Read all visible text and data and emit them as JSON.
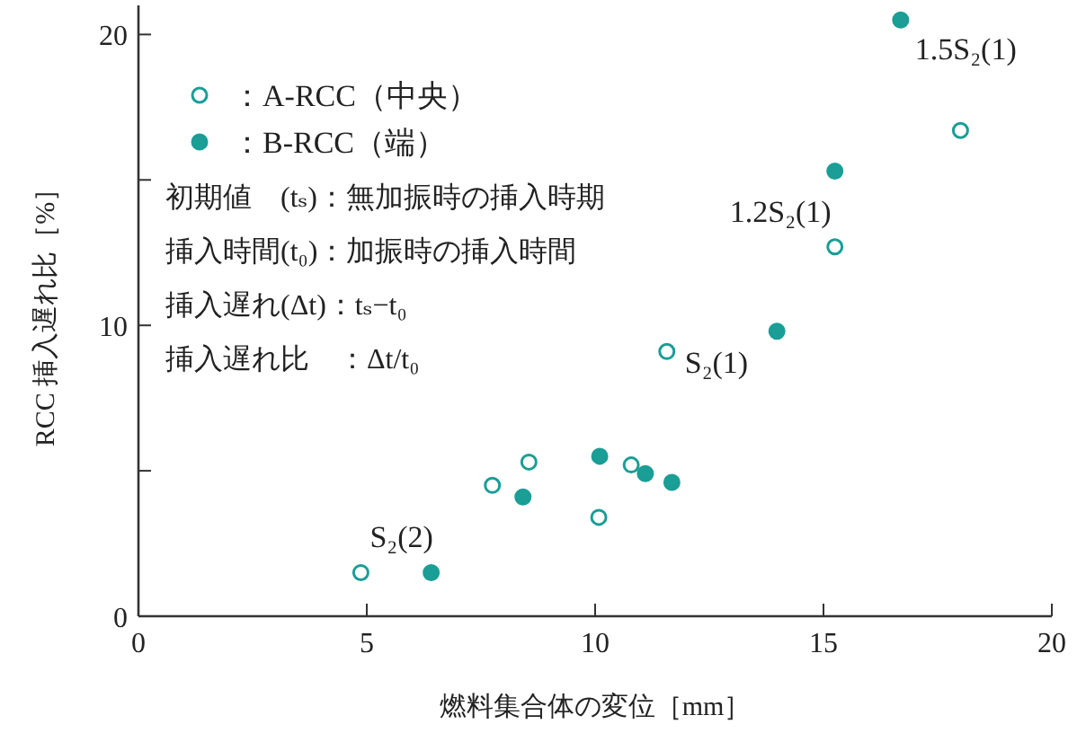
{
  "chart_data": {
    "type": "scatter",
    "xlabel": "燃料集合体の変位［mm］",
    "ylabel": "RCC 挿入遅れ比［%］",
    "xlim": [
      0,
      20
    ],
    "xticks": [
      0,
      5,
      10,
      15,
      20
    ],
    "ylim": [
      0,
      21
    ],
    "yticks": [
      0,
      {
        "value": 5,
        "label": null
      },
      10,
      {
        "value": 15,
        "label": null
      },
      20
    ],
    "grid": false,
    "legend": "top left",
    "marker": "circle",
    "series": [
      {
        "name": "：A-RCC（中央）",
        "color": "#1a9e96",
        "x": [
          4.87,
          7.75,
          8.55,
          10.08,
          10.79,
          11.57,
          15.25,
          18.0
        ],
        "values": [
          1.5,
          4.5,
          5.3,
          3.4,
          5.2,
          9.1,
          12.7,
          16.7
        ]
      },
      {
        "name": "：B-RCC（端）",
        "color": "#1a9e96",
        "x": [
          6.41,
          8.42,
          10.1,
          11.1,
          11.68,
          13.98,
          15.25,
          16.69
        ],
        "values": [
          1.5,
          4.1,
          5.5,
          4.9,
          4.6,
          9.8,
          15.3,
          20.5
        ]
      }
    ],
    "annotations": [
      "初期値　(tₛ)：無加振時の挿入時期",
      "挿入時間(t₀)：加振時の挿入時間",
      "挿入遅れ(Δt)：tₛ−t₀",
      "挿入遅れ比　：Δt/t₀",
      {
        "text": "1.5S₂(1)",
        "x": 16.69,
        "y": 20.5
      },
      {
        "text": "1.2S₂(1)",
        "x": 15.25,
        "y": 15.3
      },
      {
        "text": "S₂(1)",
        "x": 11.57,
        "y": 9.1
      },
      {
        "text": "S₂(2)",
        "x": 4.87,
        "y": 1.5
      }
    ]
  }
}
